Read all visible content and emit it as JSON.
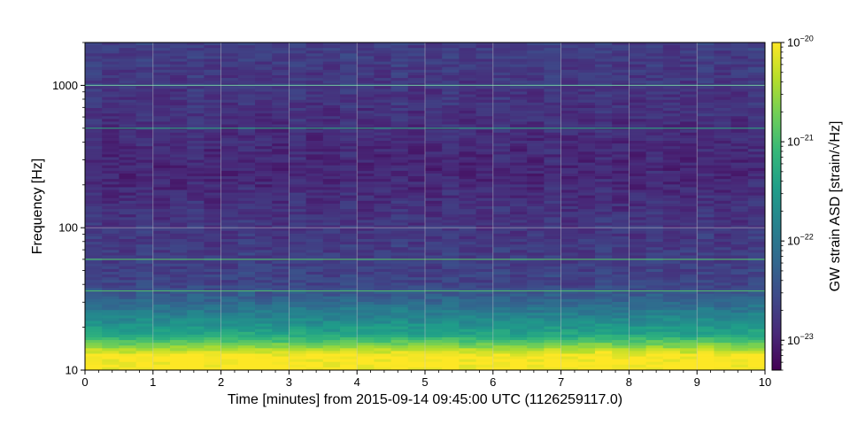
{
  "chart_data": {
    "type": "heatmap",
    "xlabel": "Time [minutes] from 2015-09-14 09:45:00 UTC (1126259117.0)",
    "ylabel": "Frequency [Hz]",
    "colorbar_label": "GW strain ASD [strain/√Hz]",
    "x_range": [
      0,
      10
    ],
    "y_range": [
      10,
      2000
    ],
    "y_scale": "log",
    "x_ticks": [
      0,
      1,
      2,
      3,
      4,
      5,
      6,
      7,
      8,
      9,
      10
    ],
    "x_tick_labels": [
      "0",
      "1",
      "2",
      "3",
      "4",
      "5",
      "6",
      "7",
      "8",
      "9",
      "10"
    ],
    "y_ticks": [
      10,
      100,
      1000
    ],
    "y_tick_labels": [
      "10",
      "100",
      "1000"
    ],
    "colorbar_range": [
      5e-24,
      1e-20
    ],
    "colorbar_scale": "log",
    "colorbar_ticks": [
      1e-23,
      1e-22,
      1e-21,
      1e-20
    ],
    "colorbar_tick_labels": [
      {
        "base": "10",
        "exp": "−23"
      },
      {
        "base": "10",
        "exp": "−22"
      },
      {
        "base": "10",
        "exp": "−21"
      },
      {
        "base": "10",
        "exp": "−20"
      }
    ],
    "colormap": "viridis",
    "colormap_stops": [
      "#440154",
      "#482878",
      "#3e4989",
      "#31688e",
      "#26828e",
      "#1f9e89",
      "#35b779",
      "#6ece58",
      "#b5de2b",
      "#fde725"
    ],
    "grid": true,
    "grid_color": "#cccccc",
    "spectral_lines_hz": [
      36,
      60,
      500,
      1000
    ]
  }
}
